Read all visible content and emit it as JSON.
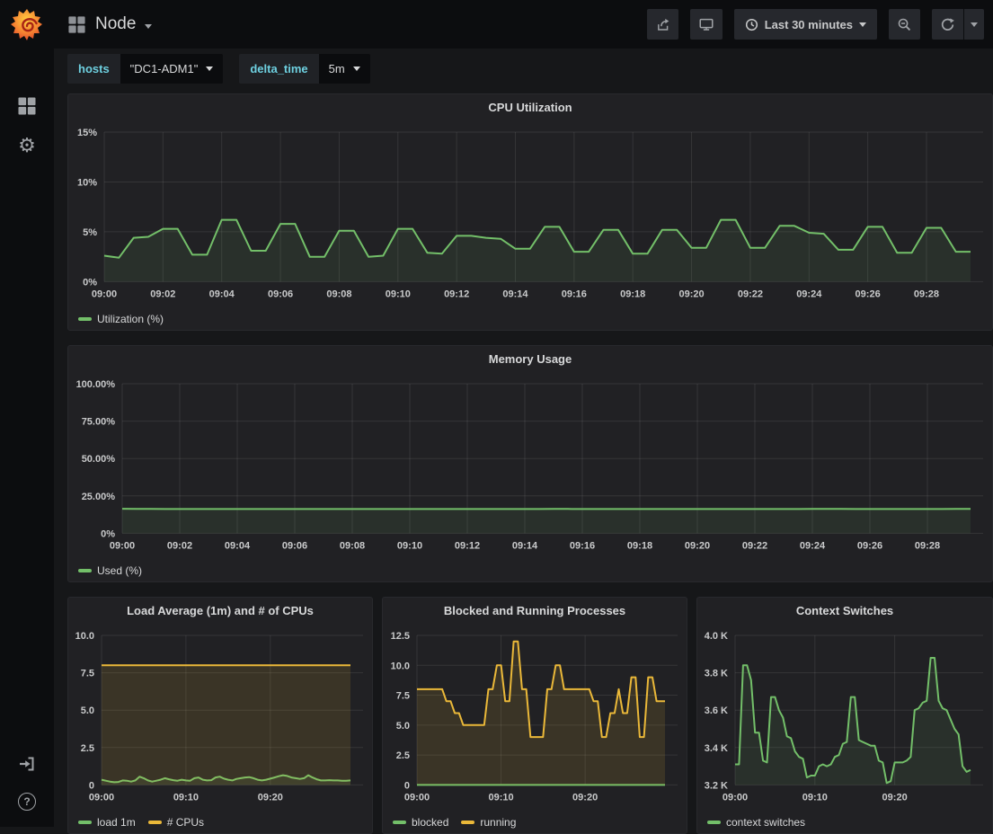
{
  "topnav": {
    "title": "Node",
    "time_range": "Last 30 minutes"
  },
  "variables": [
    {
      "label": "hosts",
      "value": "\"DC1-ADM1\""
    },
    {
      "label": "delta_time",
      "value": "5m"
    }
  ],
  "icons": {
    "gear": "⚙",
    "help": "?"
  },
  "colors": {
    "green": "#73bf69",
    "green_fill": "rgba(115,191,105,0.10)",
    "yellow": "#eab839",
    "yellow_fill": "rgba(234,184,57,0.13)",
    "accent_cyan": "#6ed0e0",
    "page_bg": "#161719",
    "panel_bg": "#212124",
    "nav_bg": "#0c0d0f",
    "text": "#d8d9da",
    "icon": "#9fa2a6",
    "grid": "rgba(255,255,255,0.09)"
  },
  "chart_data": [
    {
      "type": "line",
      "title": "CPU Utilization",
      "ylim": [
        0,
        15
      ],
      "y_ticks": [
        {
          "value": 0,
          "label": "0%"
        },
        {
          "value": 5,
          "label": "5%"
        },
        {
          "value": 10,
          "label": "10%"
        },
        {
          "value": 15,
          "label": "15%"
        }
      ],
      "x_ticks": [
        {
          "index": 0,
          "label": "09:00"
        },
        {
          "index": 4,
          "label": "09:02"
        },
        {
          "index": 8,
          "label": "09:04"
        },
        {
          "index": 12,
          "label": "09:06"
        },
        {
          "index": 16,
          "label": "09:08"
        },
        {
          "index": 20,
          "label": "09:10"
        },
        {
          "index": 24,
          "label": "09:12"
        },
        {
          "index": 28,
          "label": "09:14"
        },
        {
          "index": 32,
          "label": "09:16"
        },
        {
          "index": 36,
          "label": "09:18"
        },
        {
          "index": 40,
          "label": "09:20"
        },
        {
          "index": 44,
          "label": "09:22"
        },
        {
          "index": 48,
          "label": "09:24"
        },
        {
          "index": 52,
          "label": "09:26"
        },
        {
          "index": 56,
          "label": "09:28"
        }
      ],
      "layout": {
        "y_axis_width": 40,
        "points": 60,
        "grid": true,
        "legend_position": "bottom-left"
      },
      "series": [
        {
          "name": "Utilization (%)",
          "color": "green",
          "values": [
            2.6,
            2.4,
            4.4,
            4.5,
            5.3,
            5.3,
            2.7,
            2.7,
            6.2,
            6.2,
            3.1,
            3.1,
            5.8,
            5.8,
            2.5,
            2.5,
            5.1,
            5.1,
            2.5,
            2.6,
            5.3,
            5.3,
            2.9,
            2.8,
            4.6,
            4.6,
            4.4,
            4.3,
            3.3,
            3.3,
            5.5,
            5.5,
            3.0,
            3.0,
            5.2,
            5.2,
            2.8,
            2.8,
            5.2,
            5.2,
            3.4,
            3.4,
            6.2,
            6.2,
            3.4,
            3.4,
            5.6,
            5.6,
            4.9,
            4.8,
            3.2,
            3.2,
            5.5,
            5.5,
            2.9,
            2.9,
            5.4,
            5.4,
            3.0,
            3.0
          ]
        }
      ]
    },
    {
      "type": "line",
      "title": "Memory Usage",
      "ylim": [
        0,
        100
      ],
      "y_ticks": [
        {
          "value": 0,
          "label": "0%"
        },
        {
          "value": 25,
          "label": "25.00%"
        },
        {
          "value": 50,
          "label": "50.00%"
        },
        {
          "value": 75,
          "label": "75.00%"
        },
        {
          "value": 100,
          "label": "100.00%"
        }
      ],
      "x_ticks": [
        {
          "index": 0,
          "label": "09:00"
        },
        {
          "index": 4,
          "label": "09:02"
        },
        {
          "index": 8,
          "label": "09:04"
        },
        {
          "index": 12,
          "label": "09:06"
        },
        {
          "index": 16,
          "label": "09:08"
        },
        {
          "index": 20,
          "label": "09:10"
        },
        {
          "index": 24,
          "label": "09:12"
        },
        {
          "index": 28,
          "label": "09:14"
        },
        {
          "index": 32,
          "label": "09:16"
        },
        {
          "index": 36,
          "label": "09:18"
        },
        {
          "index": 40,
          "label": "09:20"
        },
        {
          "index": 44,
          "label": "09:22"
        },
        {
          "index": 48,
          "label": "09:24"
        },
        {
          "index": 52,
          "label": "09:26"
        },
        {
          "index": 56,
          "label": "09:28"
        }
      ],
      "layout": {
        "y_axis_width": 60,
        "points": 60,
        "grid": true,
        "legend_position": "bottom-left"
      },
      "series": [
        {
          "name": "Used (%)",
          "color": "green",
          "values": [
            16.4,
            16.3,
            16.3,
            16.2,
            16.2,
            16.2,
            16.2,
            16.2,
            16.2,
            16.2,
            16.2,
            16.2,
            16.2,
            16.2,
            16.2,
            16.2,
            16.2,
            16.2,
            16.2,
            16.2,
            16.2,
            16.2,
            16.2,
            16.2,
            16.2,
            16.2,
            16.2,
            16.2,
            16.2,
            16.2,
            16.3,
            16.3,
            16.2,
            16.2,
            16.2,
            16.2,
            16.2,
            16.2,
            16.2,
            16.2,
            16.2,
            16.2,
            16.2,
            16.2,
            16.2,
            16.2,
            16.2,
            16.2,
            16.3,
            16.3,
            16.3,
            16.2,
            16.2,
            16.2,
            16.2,
            16.2,
            16.2,
            16.2,
            16.3,
            16.3
          ]
        }
      ]
    },
    {
      "type": "line",
      "title": "Load Average (1m) and # of CPUs",
      "ylim": [
        0,
        10
      ],
      "y_ticks": [
        {
          "value": 0,
          "label": "0"
        },
        {
          "value": 2.5,
          "label": "2.5"
        },
        {
          "value": 5,
          "label": "5.0"
        },
        {
          "value": 7.5,
          "label": "7.5"
        },
        {
          "value": 10,
          "label": "10.0"
        }
      ],
      "x_ticks": [
        {
          "index": 0,
          "label": "09:00"
        },
        {
          "index": 20,
          "label": "09:10"
        },
        {
          "index": 40,
          "label": "09:20"
        }
      ],
      "layout": {
        "y_axis_width": 37,
        "points": 60,
        "grid": true,
        "legend_position": "bottom-left"
      },
      "series": [
        {
          "name": "load 1m",
          "color": "green",
          "values": [
            0.35,
            0.28,
            0.22,
            0.18,
            0.2,
            0.3,
            0.28,
            0.22,
            0.3,
            0.55,
            0.45,
            0.3,
            0.22,
            0.28,
            0.35,
            0.45,
            0.38,
            0.32,
            0.28,
            0.35,
            0.3,
            0.28,
            0.45,
            0.5,
            0.35,
            0.3,
            0.32,
            0.5,
            0.55,
            0.42,
            0.35,
            0.3,
            0.4,
            0.45,
            0.5,
            0.52,
            0.45,
            0.35,
            0.3,
            0.35,
            0.42,
            0.5,
            0.58,
            0.65,
            0.6,
            0.5,
            0.45,
            0.4,
            0.45,
            0.65,
            0.5,
            0.38,
            0.3,
            0.3,
            0.32,
            0.3,
            0.3,
            0.28,
            0.28,
            0.3
          ]
        },
        {
          "name": "# CPUs",
          "color": "yellow",
          "constant": 8
        }
      ]
    },
    {
      "type": "line",
      "title": "Blocked and Running Processes",
      "ylim": [
        0,
        12.5
      ],
      "y_ticks": [
        {
          "value": 0,
          "label": "0"
        },
        {
          "value": 2.5,
          "label": "2.5"
        },
        {
          "value": 5,
          "label": "5.0"
        },
        {
          "value": 7.5,
          "label": "7.5"
        },
        {
          "value": 10,
          "label": "10.0"
        },
        {
          "value": 12.5,
          "label": "12.5"
        }
      ],
      "x_ticks": [
        {
          "index": 0,
          "label": "09:00"
        },
        {
          "index": 20,
          "label": "09:10"
        },
        {
          "index": 40,
          "label": "09:20"
        }
      ],
      "layout": {
        "y_axis_width": 38,
        "points": 60,
        "grid": true,
        "legend_position": "bottom-left"
      },
      "series": [
        {
          "name": "blocked",
          "color": "green",
          "constant": 0
        },
        {
          "name": "running",
          "color": "yellow",
          "values": [
            8,
            8,
            8,
            8,
            8,
            8,
            8,
            7,
            7,
            6,
            6,
            5,
            5,
            5,
            5,
            5,
            5,
            8,
            8,
            10,
            10,
            7,
            7,
            12,
            12,
            8,
            8,
            4,
            4,
            4,
            4,
            8,
            8,
            10,
            10,
            8,
            8,
            8,
            8,
            8,
            8,
            8,
            7,
            7,
            4,
            4,
            6,
            6,
            8,
            6,
            6,
            9,
            9,
            4,
            4,
            9,
            9,
            7,
            7,
            7
          ]
        }
      ]
    },
    {
      "type": "line",
      "title": "Context Switches",
      "ylim": [
        3.2,
        4.0
      ],
      "y_ticks": [
        {
          "value": 3.2,
          "label": "3.2 K"
        },
        {
          "value": 3.4,
          "label": "3.4 K"
        },
        {
          "value": 3.6,
          "label": "3.6 K"
        },
        {
          "value": 3.8,
          "label": "3.8 K"
        },
        {
          "value": 4.0,
          "label": "4.0 K"
        }
      ],
      "x_ticks": [
        {
          "index": 0,
          "label": "09:00"
        },
        {
          "index": 20,
          "label": "09:10"
        },
        {
          "index": 40,
          "label": "09:20"
        }
      ],
      "layout": {
        "y_axis_width": 42,
        "points": 60,
        "grid": true,
        "legend_position": "bottom-left"
      },
      "series": [
        {
          "name": "context switches",
          "color": "green",
          "values": [
            3.31,
            3.31,
            3.84,
            3.84,
            3.76,
            3.48,
            3.48,
            3.33,
            3.32,
            3.67,
            3.67,
            3.6,
            3.56,
            3.46,
            3.45,
            3.38,
            3.35,
            3.34,
            3.24,
            3.25,
            3.25,
            3.3,
            3.31,
            3.3,
            3.31,
            3.35,
            3.36,
            3.42,
            3.43,
            3.67,
            3.67,
            3.44,
            3.43,
            3.42,
            3.41,
            3.41,
            3.33,
            3.32,
            3.21,
            3.22,
            3.32,
            3.32,
            3.32,
            3.33,
            3.35,
            3.6,
            3.61,
            3.64,
            3.65,
            3.88,
            3.88,
            3.65,
            3.61,
            3.6,
            3.55,
            3.5,
            3.47,
            3.3,
            3.27,
            3.28
          ]
        }
      ]
    }
  ]
}
